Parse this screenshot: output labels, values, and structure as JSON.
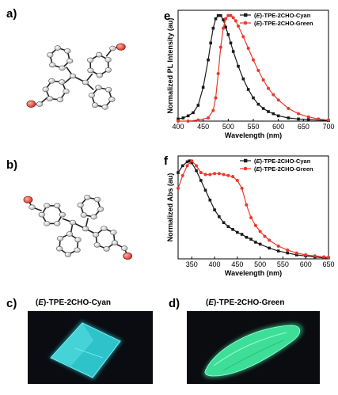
{
  "panels": {
    "a": "a)",
    "b": "b)",
    "c": "c)",
    "d": "d)",
    "e": "e",
    "f": "f"
  },
  "crystal_captions": {
    "c": {
      "paren_open": "(",
      "italic": "E",
      "rest": ")-TPE-2CHO-Cyan"
    },
    "d": {
      "paren_open": "(",
      "italic": "E",
      "rest": ")-TPE-2CHO-Green"
    }
  },
  "colors": {
    "cyan_series": "#1a1a1a",
    "green_series": "#e8392c",
    "cyan_crystal": "#27c8cf",
    "green_crystal": "#3fe7a0"
  },
  "chart_data": [
    {
      "type": "line",
      "xlabel": "Wavelength (nm)",
      "ylabel": "Normalized PL Intensity (au)",
      "xlim": [
        400,
        700
      ],
      "ylim": [
        0,
        1.05
      ],
      "xticks": [
        "400",
        "450",
        "500",
        "550",
        "600",
        "650",
        "700"
      ],
      "legend_position": "top-right",
      "series": [
        {
          "name": {
            "paren_open": "(",
            "italic": "E",
            "rest": ")-TPE-2CHO-Cyan"
          },
          "color": "#1a1a1a",
          "marker": "square",
          "x": [
            400,
            410,
            420,
            430,
            440,
            450,
            460,
            465,
            470,
            475,
            480,
            485,
            490,
            495,
            500,
            505,
            510,
            520,
            530,
            540,
            550,
            560,
            570,
            580,
            590,
            600,
            620,
            640,
            660,
            680,
            700
          ],
          "y": [
            0.02,
            0.03,
            0.05,
            0.08,
            0.15,
            0.32,
            0.58,
            0.74,
            0.88,
            0.97,
            1.0,
            1.0,
            0.96,
            0.89,
            0.82,
            0.74,
            0.66,
            0.52,
            0.4,
            0.3,
            0.22,
            0.16,
            0.12,
            0.09,
            0.07,
            0.05,
            0.03,
            0.02,
            0.015,
            0.01,
            0.005
          ]
        },
        {
          "name": {
            "paren_open": "(",
            "italic": "E",
            "rest": ")-TPE-2CHO-Green"
          },
          "color": "#e8392c",
          "marker": "circle",
          "x": [
            400,
            420,
            440,
            460,
            470,
            475,
            480,
            485,
            490,
            495,
            500,
            505,
            510,
            515,
            520,
            530,
            540,
            550,
            560,
            570,
            580,
            590,
            600,
            620,
            640,
            660,
            680,
            700
          ],
          "y": [
            0.0,
            0.0,
            0.01,
            0.03,
            0.1,
            0.22,
            0.45,
            0.7,
            0.88,
            0.97,
            1.0,
            1.0,
            0.98,
            0.95,
            0.9,
            0.8,
            0.69,
            0.58,
            0.48,
            0.39,
            0.31,
            0.25,
            0.2,
            0.12,
            0.07,
            0.04,
            0.02,
            0.01
          ]
        }
      ]
    },
    {
      "type": "line",
      "xlabel": "Wavelength (nm)",
      "ylabel": "Normalized Abs (au)",
      "xlim": [
        320,
        650
      ],
      "ylim": [
        0,
        1.05
      ],
      "xticks": [
        "350",
        "400",
        "450",
        "500",
        "550",
        "600",
        "650"
      ],
      "legend_position": "top-right",
      "series": [
        {
          "name": {
            "paren_open": "(",
            "italic": "E",
            "rest": ")-TPE-2CHO-Cyan"
          },
          "color": "#1a1a1a",
          "marker": "square",
          "x": [
            320,
            330,
            340,
            345,
            350,
            360,
            370,
            380,
            390,
            400,
            410,
            420,
            430,
            440,
            450,
            460,
            470,
            480,
            490,
            500,
            520,
            540,
            560,
            580,
            600,
            620,
            640,
            650
          ],
          "y": [
            0.88,
            0.95,
            0.99,
            1.0,
            0.98,
            0.9,
            0.8,
            0.7,
            0.6,
            0.5,
            0.43,
            0.37,
            0.33,
            0.3,
            0.27,
            0.25,
            0.22,
            0.2,
            0.17,
            0.15,
            0.11,
            0.08,
            0.06,
            0.04,
            0.03,
            0.02,
            0.01,
            0.01
          ]
        },
        {
          "name": {
            "paren_open": "(",
            "italic": "E",
            "rest": ")-TPE-2CHO-Green"
          },
          "color": "#e8392c",
          "marker": "circle",
          "x": [
            320,
            330,
            340,
            350,
            360,
            370,
            380,
            390,
            400,
            410,
            420,
            430,
            440,
            450,
            460,
            470,
            480,
            490,
            500,
            510,
            520,
            540,
            560,
            580,
            600,
            620,
            640,
            650
          ],
          "y": [
            0.72,
            0.85,
            0.95,
            1.0,
            0.95,
            0.88,
            0.86,
            0.86,
            0.87,
            0.87,
            0.86,
            0.85,
            0.84,
            0.8,
            0.72,
            0.55,
            0.42,
            0.34,
            0.28,
            0.23,
            0.19,
            0.13,
            0.09,
            0.06,
            0.04,
            0.03,
            0.02,
            0.015
          ]
        }
      ]
    }
  ]
}
